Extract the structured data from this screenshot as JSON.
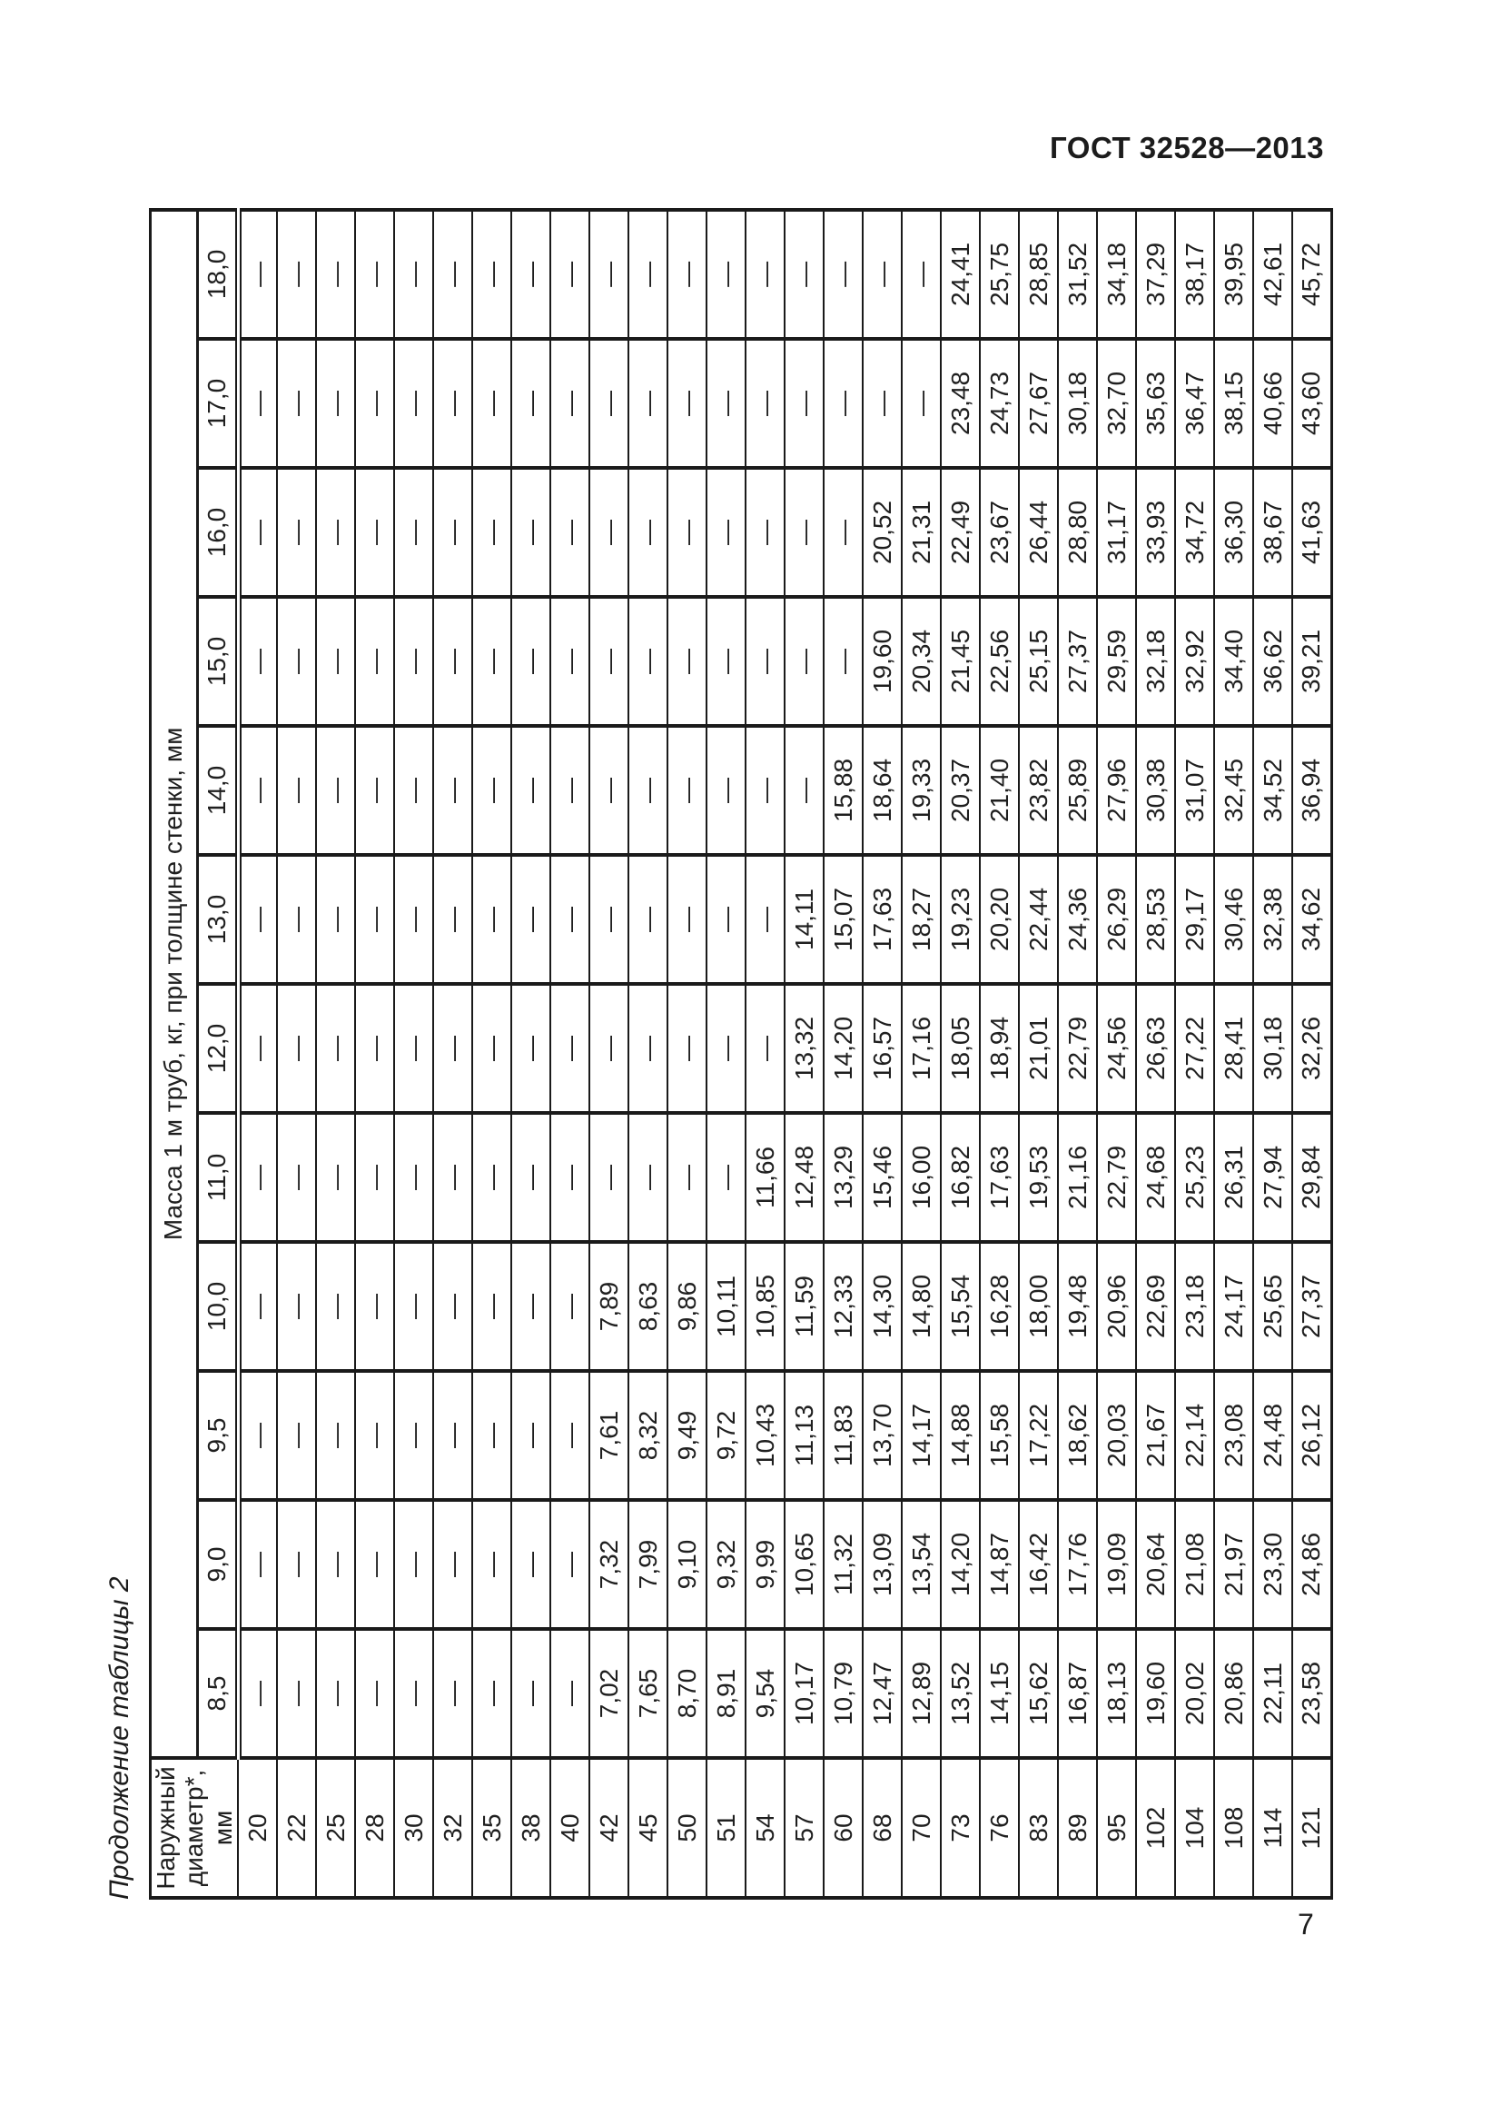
{
  "page": {
    "header_code": "ГОСТ 32528—2013",
    "caption": "Продолжение таблицы 2",
    "page_number": "7"
  },
  "table": {
    "diameter_header": "Наружный\nдиаметр*, мм",
    "mass_header": "Масса 1 м труб, кг, при толщине стенки, мм",
    "thickness_labels": [
      "8,5",
      "9,0",
      "9,5",
      "10,0",
      "11,0",
      "12,0",
      "13,0",
      "14,0",
      "15,0",
      "16,0",
      "17,0",
      "18,0"
    ],
    "rows": [
      {
        "diameter": "20",
        "values": [
          "—",
          "—",
          "—",
          "—",
          "—",
          "—",
          "—",
          "—",
          "—",
          "—",
          "—",
          "—"
        ]
      },
      {
        "diameter": "22",
        "values": [
          "—",
          "—",
          "—",
          "—",
          "—",
          "—",
          "—",
          "—",
          "—",
          "—",
          "—",
          "—"
        ]
      },
      {
        "diameter": "25",
        "values": [
          "—",
          "—",
          "—",
          "—",
          "—",
          "—",
          "—",
          "—",
          "—",
          "—",
          "—",
          "—"
        ]
      },
      {
        "diameter": "28",
        "values": [
          "—",
          "—",
          "—",
          "—",
          "—",
          "—",
          "—",
          "—",
          "—",
          "—",
          "—",
          "—"
        ]
      },
      {
        "diameter": "30",
        "values": [
          "—",
          "—",
          "—",
          "—",
          "—",
          "—",
          "—",
          "—",
          "—",
          "—",
          "—",
          "—"
        ]
      },
      {
        "diameter": "32",
        "values": [
          "—",
          "—",
          "—",
          "—",
          "—",
          "—",
          "—",
          "—",
          "—",
          "—",
          "—",
          "—"
        ]
      },
      {
        "diameter": "35",
        "values": [
          "—",
          "—",
          "—",
          "—",
          "—",
          "—",
          "—",
          "—",
          "—",
          "—",
          "—",
          "—"
        ]
      },
      {
        "diameter": "38",
        "values": [
          "—",
          "—",
          "—",
          "—",
          "—",
          "—",
          "—",
          "—",
          "—",
          "—",
          "—",
          "—"
        ]
      },
      {
        "diameter": "40",
        "values": [
          "—",
          "—",
          "—",
          "—",
          "—",
          "—",
          "—",
          "—",
          "—",
          "—",
          "—",
          "—"
        ]
      },
      {
        "diameter": "42",
        "values": [
          "7,02",
          "7,32",
          "7,61",
          "7,89",
          "—",
          "—",
          "—",
          "—",
          "—",
          "—",
          "—",
          "—"
        ]
      },
      {
        "diameter": "45",
        "values": [
          "7,65",
          "7,99",
          "8,32",
          "8,63",
          "—",
          "—",
          "—",
          "—",
          "—",
          "—",
          "—",
          "—"
        ]
      },
      {
        "diameter": "50",
        "values": [
          "8,70",
          "9,10",
          "9,49",
          "9,86",
          "—",
          "—",
          "—",
          "—",
          "—",
          "—",
          "—",
          "—"
        ]
      },
      {
        "diameter": "51",
        "values": [
          "8,91",
          "9,32",
          "9,72",
          "10,11",
          "—",
          "—",
          "—",
          "—",
          "—",
          "—",
          "—",
          "—"
        ]
      },
      {
        "diameter": "54",
        "values": [
          "9,54",
          "9,99",
          "10,43",
          "10,85",
          "11,66",
          "—",
          "—",
          "—",
          "—",
          "—",
          "—",
          "—"
        ]
      },
      {
        "diameter": "57",
        "values": [
          "10,17",
          "10,65",
          "11,13",
          "11,59",
          "12,48",
          "13,32",
          "14,11",
          "—",
          "—",
          "—",
          "—",
          "—"
        ]
      },
      {
        "diameter": "60",
        "values": [
          "10,79",
          "11,32",
          "11,83",
          "12,33",
          "13,29",
          "14,20",
          "15,07",
          "15,88",
          "—",
          "—",
          "—",
          "—"
        ]
      },
      {
        "diameter": "68",
        "values": [
          "12,47",
          "13,09",
          "13,70",
          "14,30",
          "15,46",
          "16,57",
          "17,63",
          "18,64",
          "19,60",
          "20,52",
          "—",
          "—"
        ]
      },
      {
        "diameter": "70",
        "values": [
          "12,89",
          "13,54",
          "14,17",
          "14,80",
          "16,00",
          "17,16",
          "18,27",
          "19,33",
          "20,34",
          "21,31",
          "—",
          "—"
        ]
      },
      {
        "diameter": "73",
        "values": [
          "13,52",
          "14,20",
          "14,88",
          "15,54",
          "16,82",
          "18,05",
          "19,23",
          "20,37",
          "21,45",
          "22,49",
          "23,48",
          "24,41"
        ]
      },
      {
        "diameter": "76",
        "values": [
          "14,15",
          "14,87",
          "15,58",
          "16,28",
          "17,63",
          "18,94",
          "20,20",
          "21,40",
          "22,56",
          "23,67",
          "24,73",
          "25,75"
        ]
      },
      {
        "diameter": "83",
        "values": [
          "15,62",
          "16,42",
          "17,22",
          "18,00",
          "19,53",
          "21,01",
          "22,44",
          "23,82",
          "25,15",
          "26,44",
          "27,67",
          "28,85"
        ]
      },
      {
        "diameter": "89",
        "values": [
          "16,87",
          "17,76",
          "18,62",
          "19,48",
          "21,16",
          "22,79",
          "24,36",
          "25,89",
          "27,37",
          "28,80",
          "30,18",
          "31,52"
        ]
      },
      {
        "diameter": "95",
        "values": [
          "18,13",
          "19,09",
          "20,03",
          "20,96",
          "22,79",
          "24,56",
          "26,29",
          "27,96",
          "29,59",
          "31,17",
          "32,70",
          "34,18"
        ]
      },
      {
        "diameter": "102",
        "values": [
          "19,60",
          "20,64",
          "21,67",
          "22,69",
          "24,68",
          "26,63",
          "28,53",
          "30,38",
          "32,18",
          "33,93",
          "35,63",
          "37,29"
        ]
      },
      {
        "diameter": "104",
        "values": [
          "20,02",
          "21,08",
          "22,14",
          "23,18",
          "25,23",
          "27,22",
          "29,17",
          "31,07",
          "32,92",
          "34,72",
          "36,47",
          "38,17"
        ]
      },
      {
        "diameter": "108",
        "values": [
          "20,86",
          "21,97",
          "23,08",
          "24,17",
          "26,31",
          "28,41",
          "30,46",
          "32,45",
          "34,40",
          "36,30",
          "38,15",
          "39,95"
        ]
      },
      {
        "diameter": "114",
        "values": [
          "22,11",
          "23,30",
          "24,48",
          "25,65",
          "27,94",
          "30,18",
          "32,38",
          "34,52",
          "36,62",
          "38,67",
          "40,66",
          "42,61"
        ]
      },
      {
        "diameter": "121",
        "values": [
          "23,58",
          "24,86",
          "26,12",
          "27,37",
          "29,84",
          "32,26",
          "34,62",
          "36,94",
          "39,21",
          "41,63",
          "43,60",
          "45,72"
        ]
      }
    ]
  }
}
